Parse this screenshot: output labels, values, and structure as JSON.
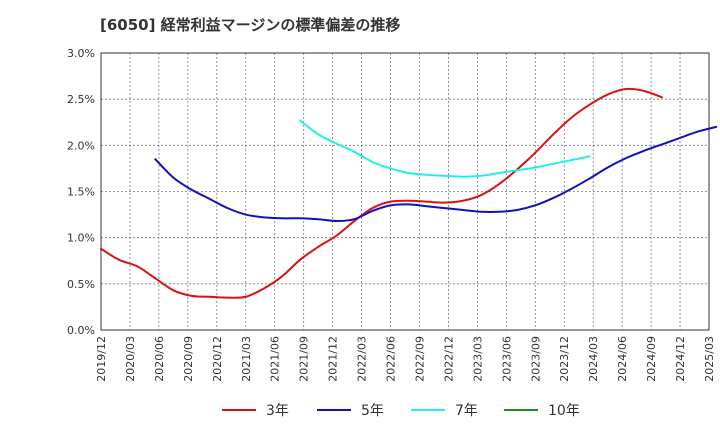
{
  "chart_data": {
    "type": "line",
    "title": "[6050]  経常利益マージンの標準偏差の推移",
    "xlabel": "",
    "ylabel": "",
    "ylim": [
      0,
      3.0
    ],
    "y_ticks": [
      0.0,
      0.5,
      1.0,
      1.5,
      2.0,
      2.5,
      3.0
    ],
    "y_tick_labels": [
      "0.0%",
      "0.5%",
      "1.0%",
      "1.5%",
      "2.0%",
      "2.5%",
      "3.0%"
    ],
    "x_tick_labels": [
      "2019/12",
      "2020/03",
      "2020/06",
      "2020/09",
      "2020/12",
      "2021/03",
      "2021/06",
      "2021/09",
      "2021/12",
      "2022/03",
      "2022/06",
      "2022/09",
      "2022/12",
      "2023/03",
      "2023/06",
      "2023/09",
      "2023/12",
      "2024/03",
      "2024/06",
      "2024/09",
      "2024/12",
      "2025/03"
    ],
    "grid": true,
    "legend_position": "bottom",
    "series": [
      {
        "name": "3年",
        "color": "#dd1111",
        "start_index": 0,
        "values": [
          0.88,
          0.76,
          0.69,
          0.56,
          0.43,
          0.37,
          0.36,
          0.35,
          0.36,
          0.45,
          0.58,
          0.76,
          0.9,
          1.02,
          1.18,
          1.32,
          1.39,
          1.4,
          1.39,
          1.38,
          1.4,
          1.46,
          1.58,
          1.74,
          1.92,
          2.12,
          2.3,
          2.44,
          2.55,
          2.61,
          2.59,
          2.52
        ]
      },
      {
        "name": "5年",
        "color": "#1111bb",
        "start_index": 3,
        "values": [
          1.85,
          1.65,
          1.52,
          1.42,
          1.32,
          1.25,
          1.22,
          1.21,
          1.21,
          1.2,
          1.18,
          1.2,
          1.29,
          1.35,
          1.36,
          1.34,
          1.32,
          1.3,
          1.28,
          1.28,
          1.3,
          1.35,
          1.43,
          1.53,
          1.64,
          1.76,
          1.86,
          1.94,
          2.01,
          2.08,
          2.15,
          2.2
        ]
      },
      {
        "name": "7年",
        "color": "#22eeee",
        "start_index": 11,
        "values": [
          2.27,
          2.12,
          2.02,
          1.93,
          1.82,
          1.75,
          1.7,
          1.68,
          1.67,
          1.66,
          1.67,
          1.7,
          1.73,
          1.76,
          1.8,
          1.84,
          1.88
        ]
      },
      {
        "name": "10年",
        "color": "#228822",
        "start_index": 0,
        "values": []
      }
    ]
  }
}
